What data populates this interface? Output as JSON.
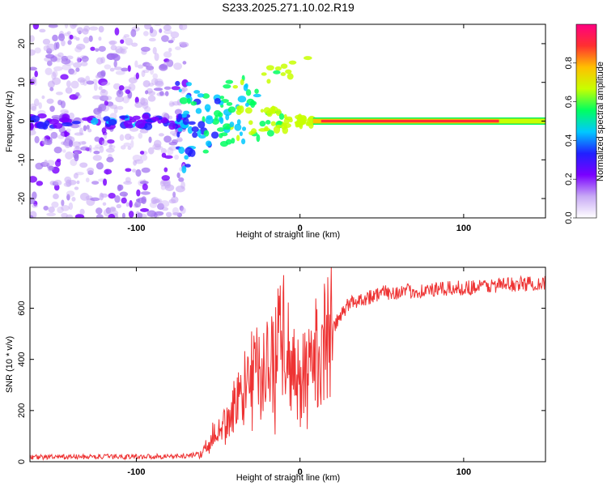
{
  "title": "S233.2025.271.10.02.R19",
  "chart_data": [
    {
      "type": "heatmap",
      "xlabel": "Height of straight line (km)",
      "ylabel": "Frequency (Hz)",
      "xlim": [
        -165,
        150
      ],
      "ylim": [
        -25,
        25
      ],
      "xticks": [
        -100,
        0,
        100
      ],
      "yticks": [
        -20,
        -10,
        0,
        10,
        20
      ],
      "colorbar": {
        "label": "Normalized spectral amplitude",
        "range": [
          0,
          1
        ],
        "ticks": [
          "0.0",
          "0.2",
          "0.4",
          "0.6",
          "0.8"
        ],
        "colormap": [
          "#ffffff",
          "#c8aaf5",
          "#7a00ff",
          "#2020ff",
          "#00c8ff",
          "#00ff60",
          "#c8ff00",
          "#ffc000",
          "#ff3030",
          "#ff0080"
        ]
      },
      "noise_region_km": [
        -165,
        -75
      ],
      "transition_region_km": [
        -75,
        10
      ],
      "tone": {
        "frequency_hz": 0,
        "start_km": 8,
        "end_km": 150,
        "amplitude": 0.95
      }
    },
    {
      "type": "line",
      "xlabel": "Height of straight line (km)",
      "ylabel": "SNR (10 * v/v)",
      "xlim": [
        -165,
        150
      ],
      "ylim": [
        0,
        760
      ],
      "xticks": [
        -100,
        0,
        100
      ],
      "yticks": [
        0,
        200,
        400,
        600
      ],
      "color": "#ee3333",
      "series": [
        {
          "name": "SNR",
          "x": [
            -165,
            -100,
            -70,
            -60,
            -55,
            -50,
            -40,
            -30,
            -20,
            -10,
            0,
            10,
            20,
            30,
            50,
            80,
            100,
            120,
            150
          ],
          "values": [
            18,
            20,
            22,
            30,
            80,
            140,
            200,
            330,
            360,
            480,
            300,
            420,
            520,
            620,
            660,
            670,
            680,
            690,
            700
          ]
        }
      ]
    }
  ]
}
